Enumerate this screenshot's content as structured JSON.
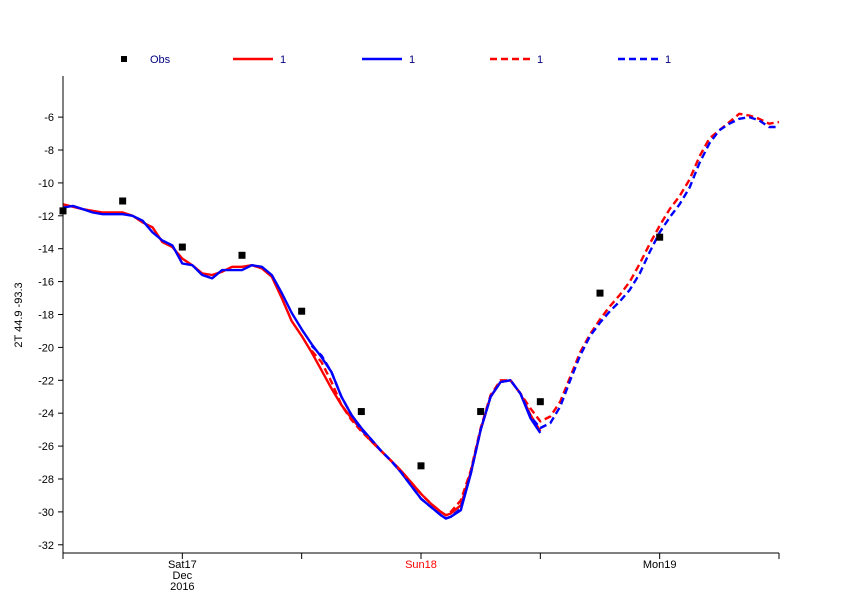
{
  "chart_data": {
    "type": "line",
    "ylabel": "2T 44.9 -93.3",
    "ylim": [
      -32.5,
      -3.5
    ],
    "yticks": [
      -6,
      -8,
      -10,
      -12,
      -14,
      -16,
      -18,
      -20,
      -22,
      -24,
      -26,
      -28,
      -30,
      -32
    ],
    "xlim": [
      0,
      72
    ],
    "xticks": [
      0,
      12,
      24,
      36,
      48,
      60,
      72
    ],
    "xlabels": [
      {
        "x": 12,
        "lines": [
          "Sat17",
          "Dec",
          "2016"
        ],
        "color": "#000000"
      },
      {
        "x": 36,
        "lines": [
          "Sun18"
        ],
        "color": "#ff0000"
      },
      {
        "x": 60,
        "lines": [
          "Mon19"
        ],
        "color": "#000000"
      }
    ],
    "legend_position": "top",
    "obs": {
      "name": "Obs",
      "color": "#000000",
      "points": [
        [
          0,
          -11.7
        ],
        [
          6,
          -11.1
        ],
        [
          12,
          -13.9
        ],
        [
          18,
          -14.4
        ],
        [
          24,
          -17.8
        ],
        [
          30,
          -23.9
        ],
        [
          36,
          -27.2
        ],
        [
          42,
          -23.9
        ],
        [
          48,
          -23.3
        ],
        [
          54,
          -16.7
        ],
        [
          60,
          -13.3
        ]
      ]
    },
    "series": [
      {
        "name": "1",
        "color": "#ff0000",
        "dash": false,
        "points": [
          [
            0,
            -11.3
          ],
          [
            2,
            -11.6
          ],
          [
            4,
            -11.8
          ],
          [
            6,
            -11.8
          ],
          [
            7,
            -12
          ],
          [
            8,
            -12.4
          ],
          [
            9,
            -12.7
          ],
          [
            10,
            -13.6
          ],
          [
            11,
            -13.9
          ],
          [
            12,
            -14.6
          ],
          [
            13,
            -15
          ],
          [
            14,
            -15.5
          ],
          [
            15,
            -15.6
          ],
          [
            16,
            -15.4
          ],
          [
            17,
            -15.1
          ],
          [
            18,
            -15.1
          ],
          [
            19,
            -15
          ],
          [
            20,
            -15.2
          ],
          [
            21,
            -15.7
          ],
          [
            22,
            -17
          ],
          [
            23,
            -18.4
          ],
          [
            24,
            -19.3
          ],
          [
            25,
            -20.3
          ],
          [
            26,
            -21.4
          ],
          [
            27,
            -22.5
          ],
          [
            28,
            -23.5
          ],
          [
            29,
            -24.3
          ],
          [
            30,
            -25
          ],
          [
            31,
            -25.7
          ],
          [
            32,
            -26.3
          ],
          [
            33,
            -26.9
          ],
          [
            34,
            -27.5
          ],
          [
            35,
            -28.2
          ],
          [
            36,
            -28.9
          ],
          [
            37,
            -29.5
          ],
          [
            38,
            -30
          ],
          [
            38.5,
            -30.2
          ],
          [
            39,
            -30.1
          ],
          [
            40,
            -29.6
          ],
          [
            41,
            -27.6
          ],
          [
            42,
            -25
          ],
          [
            43,
            -23
          ],
          [
            44,
            -22.1
          ],
          [
            45,
            -22
          ],
          [
            46,
            -22.8
          ],
          [
            47,
            -24.1
          ],
          [
            48,
            -25.1
          ]
        ]
      },
      {
        "name": "1",
        "color": "#0000ff",
        "dash": false,
        "points": [
          [
            0,
            -11.5
          ],
          [
            1,
            -11.4
          ],
          [
            2,
            -11.6
          ],
          [
            3,
            -11.8
          ],
          [
            4,
            -11.9
          ],
          [
            6,
            -11.9
          ],
          [
            7,
            -12
          ],
          [
            8,
            -12.3
          ],
          [
            9,
            -13
          ],
          [
            10,
            -13.5
          ],
          [
            11,
            -13.8
          ],
          [
            12,
            -14.9
          ],
          [
            13,
            -15
          ],
          [
            14,
            -15.6
          ],
          [
            15,
            -15.8
          ],
          [
            16,
            -15.3
          ],
          [
            17,
            -15.3
          ],
          [
            18,
            -15.3
          ],
          [
            19,
            -15
          ],
          [
            20,
            -15.1
          ],
          [
            21,
            -15.6
          ],
          [
            22,
            -16.7
          ],
          [
            23,
            -17.9
          ],
          [
            24,
            -18.9
          ],
          [
            25,
            -19.8
          ],
          [
            26,
            -20.6
          ],
          [
            27,
            -21.5
          ],
          [
            28,
            -23
          ],
          [
            29,
            -24.1
          ],
          [
            30,
            -24.9
          ],
          [
            31,
            -25.6
          ],
          [
            32,
            -26.3
          ],
          [
            33,
            -26.9
          ],
          [
            34,
            -27.6
          ],
          [
            35,
            -28.4
          ],
          [
            36,
            -29.2
          ],
          [
            37,
            -29.7
          ],
          [
            38,
            -30.2
          ],
          [
            38.5,
            -30.4
          ],
          [
            39,
            -30.3
          ],
          [
            40,
            -29.9
          ],
          [
            41,
            -27.7
          ],
          [
            42,
            -25
          ],
          [
            43,
            -23
          ],
          [
            44,
            -22.1
          ],
          [
            45,
            -22
          ],
          [
            46,
            -22.8
          ],
          [
            47,
            -24.3
          ],
          [
            48,
            -25.2
          ]
        ]
      },
      {
        "name": "1",
        "color": "#ff0000",
        "dash": true,
        "points": [
          [
            25,
            -20.2
          ],
          [
            26,
            -20.9
          ],
          [
            27,
            -22.1
          ],
          [
            28,
            -23.5
          ],
          [
            29,
            -24.4
          ],
          [
            30,
            -25.1
          ],
          [
            31,
            -25.7
          ],
          [
            32,
            -26.3
          ],
          [
            33,
            -26.9
          ],
          [
            34,
            -27.5
          ],
          [
            35,
            -28.2
          ],
          [
            36,
            -28.9
          ],
          [
            37,
            -29.5
          ],
          [
            38,
            -30
          ],
          [
            38.5,
            -30.2
          ],
          [
            39,
            -30
          ],
          [
            40,
            -29.3
          ],
          [
            41,
            -27.5
          ],
          [
            42,
            -24.9
          ],
          [
            43,
            -22.9
          ],
          [
            44,
            -22
          ],
          [
            45,
            -22
          ],
          [
            46,
            -22.8
          ],
          [
            47,
            -23.7
          ],
          [
            48,
            -24.5
          ],
          [
            49,
            -24.2
          ],
          [
            50,
            -23.3
          ],
          [
            51,
            -21.8
          ],
          [
            52,
            -20.3
          ],
          [
            53,
            -19.2
          ],
          [
            54,
            -18.3
          ],
          [
            55,
            -17.5
          ],
          [
            56,
            -16.8
          ],
          [
            57,
            -16
          ],
          [
            58,
            -14.9
          ],
          [
            59,
            -13.7
          ],
          [
            60,
            -12.6
          ],
          [
            61,
            -11.6
          ],
          [
            62,
            -10.8
          ],
          [
            63,
            -9.8
          ],
          [
            64,
            -8.4
          ],
          [
            65,
            -7.3
          ],
          [
            66,
            -6.8
          ],
          [
            67,
            -6.3
          ],
          [
            68,
            -5.8
          ],
          [
            69,
            -5.9
          ],
          [
            70,
            -6.1
          ],
          [
            71,
            -6.4
          ],
          [
            72,
            -6.3
          ]
        ]
      },
      {
        "name": "1",
        "color": "#0000ff",
        "dash": true,
        "points": [
          [
            25,
            -19.9
          ],
          [
            26,
            -20.5
          ],
          [
            27,
            -21.5
          ],
          [
            28,
            -23
          ],
          [
            29,
            -24.1
          ],
          [
            30,
            -25
          ],
          [
            31,
            -25.6
          ],
          [
            32,
            -26.3
          ],
          [
            33,
            -26.9
          ],
          [
            34,
            -27.6
          ],
          [
            35,
            -28.4
          ],
          [
            36,
            -29.2
          ],
          [
            37,
            -29.7
          ],
          [
            38,
            -30.2
          ],
          [
            38.5,
            -30.4
          ],
          [
            39,
            -30.3
          ],
          [
            40,
            -29.8
          ],
          [
            41,
            -27.7
          ],
          [
            42,
            -25
          ],
          [
            43,
            -23
          ],
          [
            44,
            -22.1
          ],
          [
            45,
            -22
          ],
          [
            46,
            -22.8
          ],
          [
            47,
            -24.2
          ],
          [
            48,
            -24.9
          ],
          [
            49,
            -24.6
          ],
          [
            50,
            -23.6
          ],
          [
            51,
            -22
          ],
          [
            52,
            -20.5
          ],
          [
            53,
            -19.3
          ],
          [
            54,
            -18.5
          ],
          [
            55,
            -17.8
          ],
          [
            56,
            -17.2
          ],
          [
            57,
            -16.5
          ],
          [
            58,
            -15.5
          ],
          [
            59,
            -14.2
          ],
          [
            60,
            -13
          ],
          [
            61,
            -12.1
          ],
          [
            62,
            -11.3
          ],
          [
            63,
            -10.3
          ],
          [
            64,
            -8.8
          ],
          [
            65,
            -7.6
          ],
          [
            66,
            -6.8
          ],
          [
            67,
            -6.4
          ],
          [
            68,
            -6.1
          ],
          [
            69,
            -6
          ],
          [
            70,
            -6.2
          ],
          [
            71,
            -6.6
          ],
          [
            72,
            -6.6
          ]
        ]
      }
    ]
  }
}
